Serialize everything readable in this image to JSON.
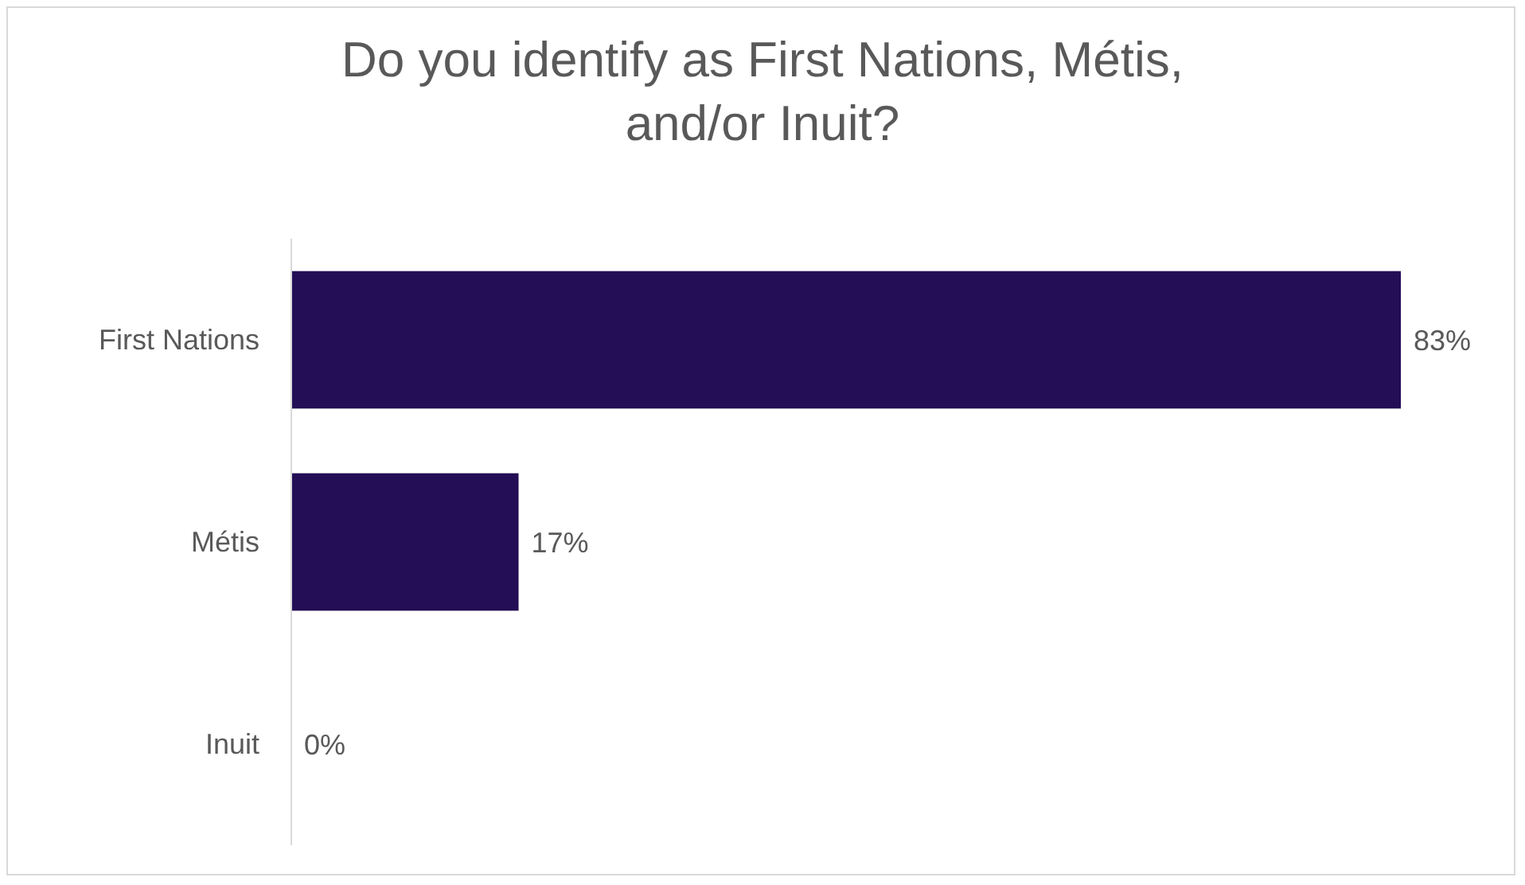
{
  "chart_data": {
    "type": "bar",
    "orientation": "horizontal",
    "title": "Do you identify as First Nations, Métis, and/or Inuit?",
    "categories": [
      "First Nations",
      "Métis",
      "Inuit"
    ],
    "values": [
      83,
      17,
      0
    ],
    "value_labels": [
      "83%",
      "17%",
      "0%"
    ],
    "color": "#240e55"
  }
}
